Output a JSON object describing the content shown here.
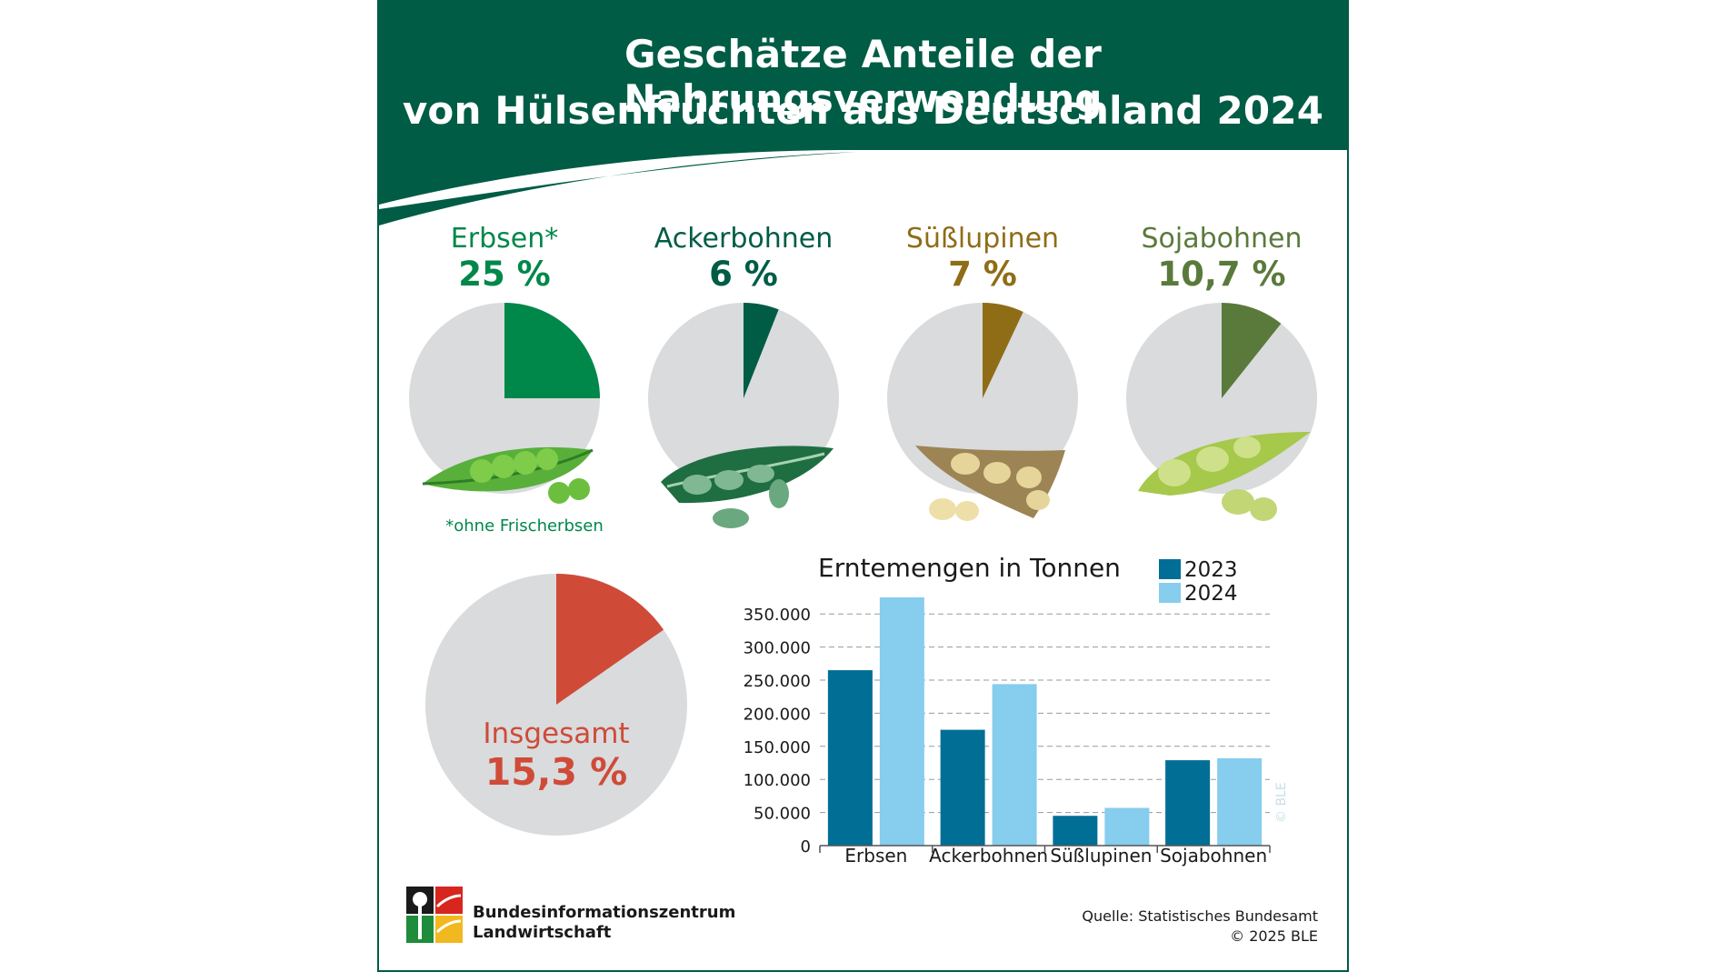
{
  "header": {
    "title_line1": "Geschätze Anteile der Nahrungsverwendung",
    "title_line2": "von Hülsenfrüchten aus Deutschland 2024"
  },
  "shares": [
    {
      "label": "Erbsen*",
      "pct_text": "25 %",
      "value": 25,
      "color": "#00874a"
    },
    {
      "label": "Ackerbohnen",
      "pct_text": "6 %",
      "value": 6,
      "color": "#005c45"
    },
    {
      "label": "Süßlupinen",
      "pct_text": "7 %",
      "value": 7,
      "color": "#8f6d16"
    },
    {
      "label": "Sojabohnen",
      "pct_text": "10,7 %",
      "value": 10.7,
      "color": "#5a7a3c"
    }
  ],
  "footnote": "*ohne Frischerbsen",
  "total": {
    "label": "Insgesamt",
    "pct_text": "15,3 %",
    "value": 15.3,
    "color": "#cf4b38"
  },
  "chart_data": [
    {
      "type": "pie",
      "title": "Geschätze Anteile der Nahrungsverwendung von Hülsenfrüchten aus Deutschland 2024",
      "categories": [
        "Erbsen*",
        "Ackerbohnen",
        "Süßlupinen",
        "Sojabohnen",
        "Insgesamt"
      ],
      "values": [
        25,
        6,
        7,
        10.7,
        15.3
      ],
      "unit": "%"
    },
    {
      "type": "bar",
      "title": "Erntemengen in Tonnen",
      "categories": [
        "Erbsen",
        "Ackerbohnen",
        "Süßlupinen",
        "Sojabohnen"
      ],
      "series": [
        {
          "name": "2023",
          "values": [
            265000,
            175000,
            45000,
            129000
          ],
          "color": "#016e96"
        },
        {
          "name": "2024",
          "values": [
            375000,
            244000,
            57000,
            132000
          ],
          "color": "#86cdee"
        }
      ],
      "ylim": [
        0,
        375000
      ],
      "yticks": [
        0,
        50000,
        100000,
        150000,
        200000,
        250000,
        300000,
        350000
      ],
      "ytick_labels": [
        "0",
        "50.000",
        "100.000",
        "150.000",
        "200.000",
        "250.000",
        "300.000",
        "350.000"
      ],
      "grid": true
    }
  ],
  "footer": {
    "org_line1": "Bundesinformationszentrum",
    "org_line2": "Landwirtschaft",
    "source_line1": "Quelle: Statistisches Bundesamt",
    "source_line2": "© 2025 BLE"
  },
  "watermark": "© BLE",
  "colors": {
    "brand_green": "#005c45",
    "pie_bg": "#d9dbdd"
  }
}
